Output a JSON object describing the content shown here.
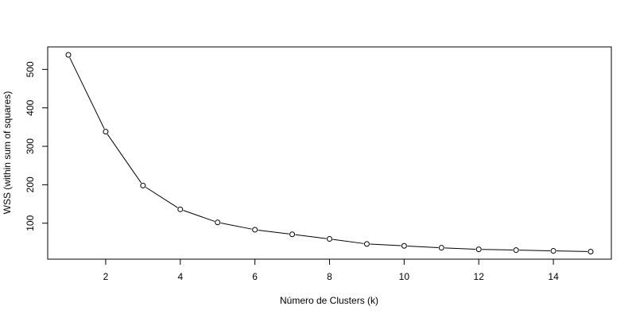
{
  "chart_data": {
    "type": "line",
    "title": "",
    "xlabel": "Número de Clusters (k)",
    "ylabel": "WSS (within sum of squares)",
    "xlim": [
      1,
      15
    ],
    "ylim": [
      25,
      540
    ],
    "x_ticks": [
      2,
      4,
      6,
      8,
      10,
      12,
      14
    ],
    "y_ticks": [
      100,
      200,
      300,
      400,
      500
    ],
    "grid": false,
    "marker": "open-circle",
    "series": [
      {
        "x": [
          1,
          2,
          3,
          4,
          5,
          6,
          7,
          8,
          9,
          10,
          11,
          12,
          13,
          14,
          15
        ],
        "values": [
          538,
          338,
          198,
          136,
          102,
          83,
          71,
          59,
          46,
          41,
          36,
          32,
          30,
          28,
          26
        ]
      }
    ],
    "colors": {
      "line": "#000000",
      "marker_fill": "#ffffff"
    }
  }
}
